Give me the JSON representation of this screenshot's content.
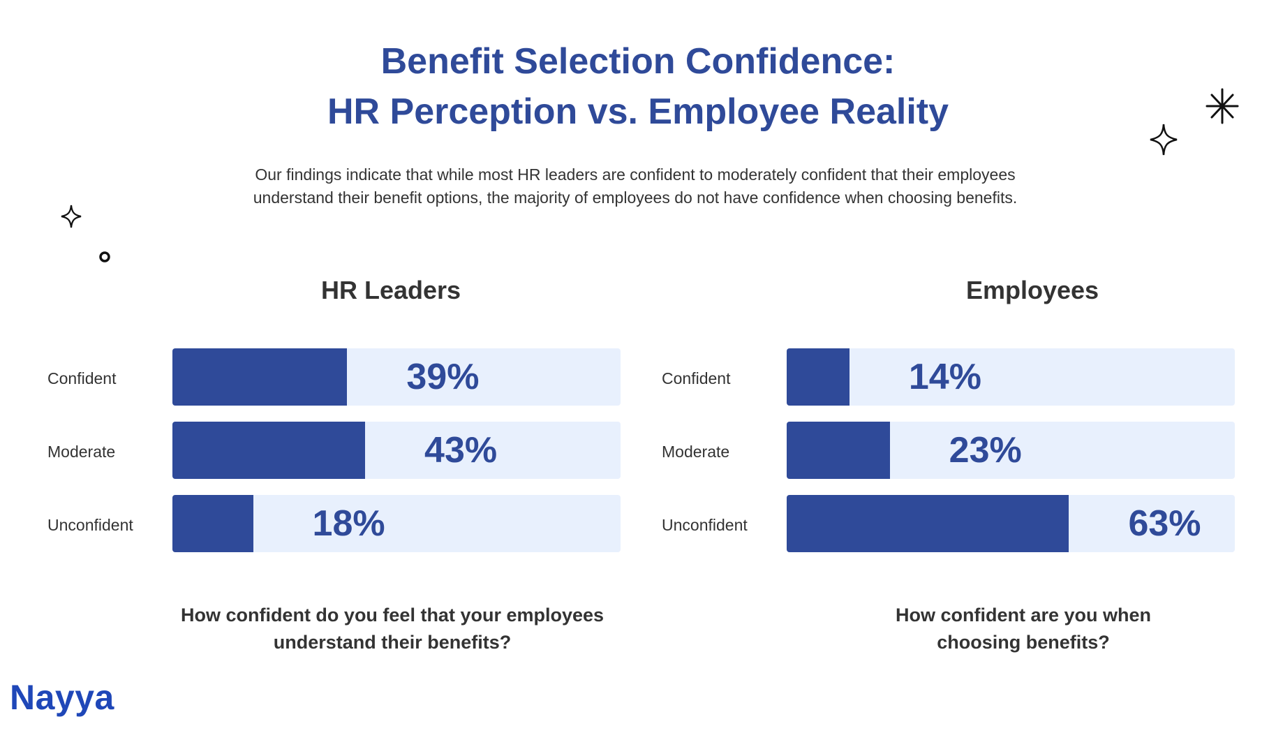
{
  "header": {
    "title_line1": "Benefit Selection Confidence:",
    "title_line2": "HR Perception vs. Employee Reality",
    "description_line1": "Our findings indicate that while most HR leaders are confident to moderately confident that their employees",
    "description_line2": "understand their benefit options, the majority of employees do not have confidence when choosing benefits."
  },
  "colors": {
    "accent": "#2f4a99",
    "track": "#e8f0fd",
    "logo": "#1f47b8"
  },
  "chart_data": [
    {
      "type": "bar",
      "orientation": "horizontal",
      "title": "HR Leaders",
      "categories": [
        "Confident",
        "Moderate",
        "Unconfident"
      ],
      "values": [
        39,
        43,
        18
      ],
      "value_labels": [
        "39%",
        "43%",
        "18%"
      ],
      "xlim": [
        0,
        100
      ],
      "question_line1": "How confident do you feel that your employees",
      "question_line2": "understand their benefits?"
    },
    {
      "type": "bar",
      "orientation": "horizontal",
      "title": "Employees",
      "categories": [
        "Confident",
        "Moderate",
        "Unconfident"
      ],
      "values": [
        14,
        23,
        63
      ],
      "value_labels": [
        "14%",
        "23%",
        "63%"
      ],
      "xlim": [
        0,
        100
      ],
      "question_line1": "How confident are you when",
      "question_line2": "choosing benefits?"
    }
  ],
  "footer": {
    "logo_text": "Nayya"
  },
  "decorations": [
    "sparkle-icon",
    "sparkle-icon",
    "asterisk-icon",
    "ring-icon"
  ]
}
